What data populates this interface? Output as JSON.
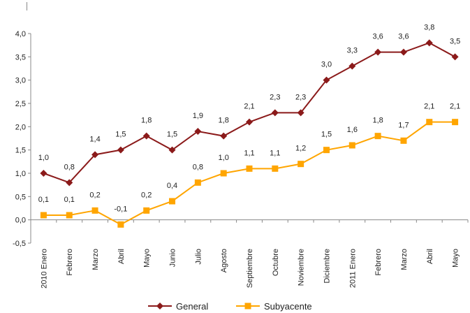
{
  "chart_data": {
    "type": "line",
    "categories": [
      "2010 Enero",
      "Febrero",
      "Marzo",
      "Abril",
      "Mayo",
      "Junio",
      "Julio",
      "Agosto",
      "Septiembre",
      "Octubre",
      "Noviembre",
      "Diciembre",
      "2011 Enero",
      "Febrero",
      "Marzo",
      "Abril",
      "Mayo"
    ],
    "series": [
      {
        "name": "General",
        "color": "#8B1A1A",
        "marker": "diamond",
        "values": [
          1.0,
          0.8,
          1.4,
          1.5,
          1.8,
          1.5,
          1.9,
          1.8,
          2.1,
          2.3,
          2.3,
          3.0,
          3.3,
          3.6,
          3.6,
          3.8,
          3.5
        ],
        "labels": [
          "1,0",
          "0,8",
          "1,4",
          "1,5",
          "1,8",
          "1,5",
          "1,9",
          "1,8",
          "2,1",
          "2,3",
          "2,3",
          "3,0",
          "3,3",
          "3,6",
          "3,6",
          "3,8",
          "3,5"
        ]
      },
      {
        "name": "Subyacente",
        "color": "#FFA500",
        "marker": "square",
        "values": [
          0.1,
          0.1,
          0.2,
          -0.1,
          0.2,
          0.4,
          0.8,
          1.0,
          1.1,
          1.1,
          1.2,
          1.5,
          1.6,
          1.8,
          1.7,
          2.1,
          2.1
        ],
        "labels": [
          "0,1",
          "0,1",
          "0,2",
          "-0,1",
          "0,2",
          "0,4",
          "0,8",
          "1,0",
          "1,1",
          "1,1",
          "1,2",
          "1,5",
          "1,6",
          "1,8",
          "1,7",
          "2,1",
          "2,1"
        ]
      }
    ],
    "ylim": [
      -0.5,
      4.0
    ],
    "yticks": [
      -0.5,
      0.0,
      0.5,
      1.0,
      1.5,
      2.0,
      2.5,
      3.0,
      3.5,
      4.0
    ],
    "ytick_labels": [
      "-0,5",
      "0,0",
      "0,5",
      "1,0",
      "1,5",
      "2,0",
      "2,5",
      "3,0",
      "3,5",
      "4,0"
    ],
    "grid": false,
    "legend": "bottom-center",
    "title": "",
    "xlabel": "",
    "ylabel": ""
  }
}
